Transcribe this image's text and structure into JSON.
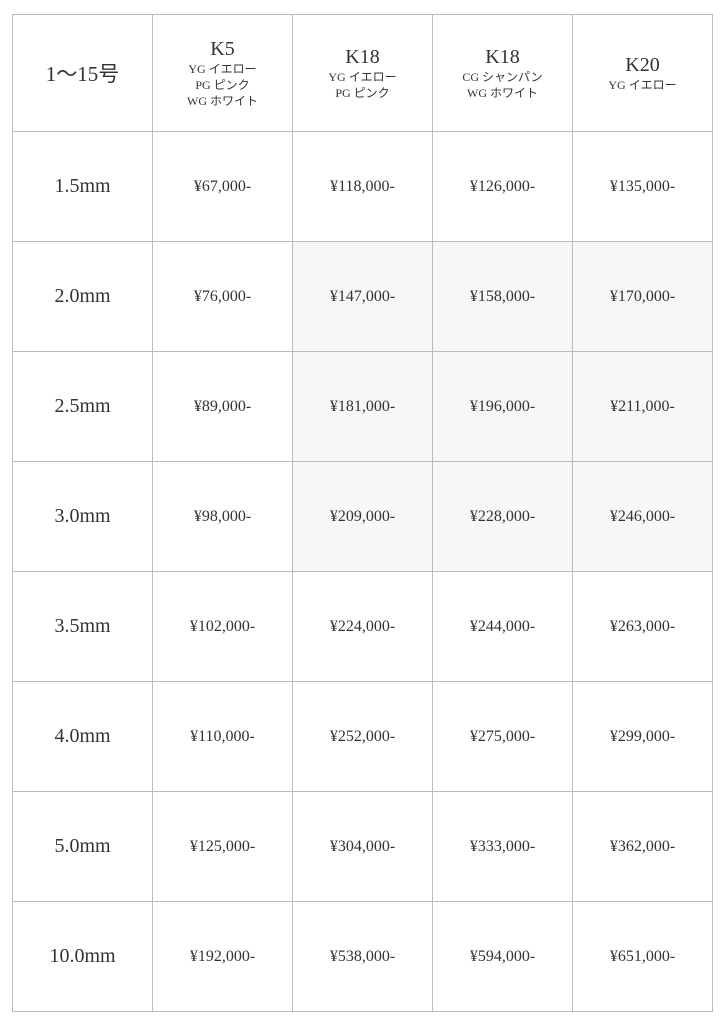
{
  "table": {
    "corner": "1〜15号",
    "columns": [
      {
        "metal": "K5",
        "colors": [
          "YG イエロー",
          "PG ピンク",
          "WG ホワイト"
        ]
      },
      {
        "metal": "K18",
        "colors": [
          "YG イエロー",
          "PG ピンク"
        ]
      },
      {
        "metal": "K18",
        "colors": [
          "CG シャンパン",
          "WG ホワイト"
        ]
      },
      {
        "metal": "K20",
        "colors": [
          "YG イエロー"
        ]
      }
    ],
    "rows": [
      {
        "size": "1.5mm",
        "prices": [
          "¥67,000-",
          "¥118,000-",
          "¥126,000-",
          "¥135,000-"
        ]
      },
      {
        "size": "2.0mm",
        "prices": [
          "¥76,000-",
          "¥147,000-",
          "¥158,000-",
          "¥170,000-"
        ]
      },
      {
        "size": "2.5mm",
        "prices": [
          "¥89,000-",
          "¥181,000-",
          "¥196,000-",
          "¥211,000-"
        ]
      },
      {
        "size": "3.0mm",
        "prices": [
          "¥98,000-",
          "¥209,000-",
          "¥228,000-",
          "¥246,000-"
        ]
      },
      {
        "size": "3.5mm",
        "prices": [
          "¥102,000-",
          "¥224,000-",
          "¥244,000-",
          "¥263,000-"
        ]
      },
      {
        "size": "4.0mm",
        "prices": [
          "¥110,000-",
          "¥252,000-",
          "¥275,000-",
          "¥299,000-"
        ]
      },
      {
        "size": "5.0mm",
        "prices": [
          "¥125,000-",
          "¥304,000-",
          "¥333,000-",
          "¥362,000-"
        ]
      },
      {
        "size": "10.0mm",
        "prices": [
          "¥192,000-",
          "¥538,000-",
          "¥594,000-",
          "¥651,000-"
        ]
      }
    ]
  }
}
